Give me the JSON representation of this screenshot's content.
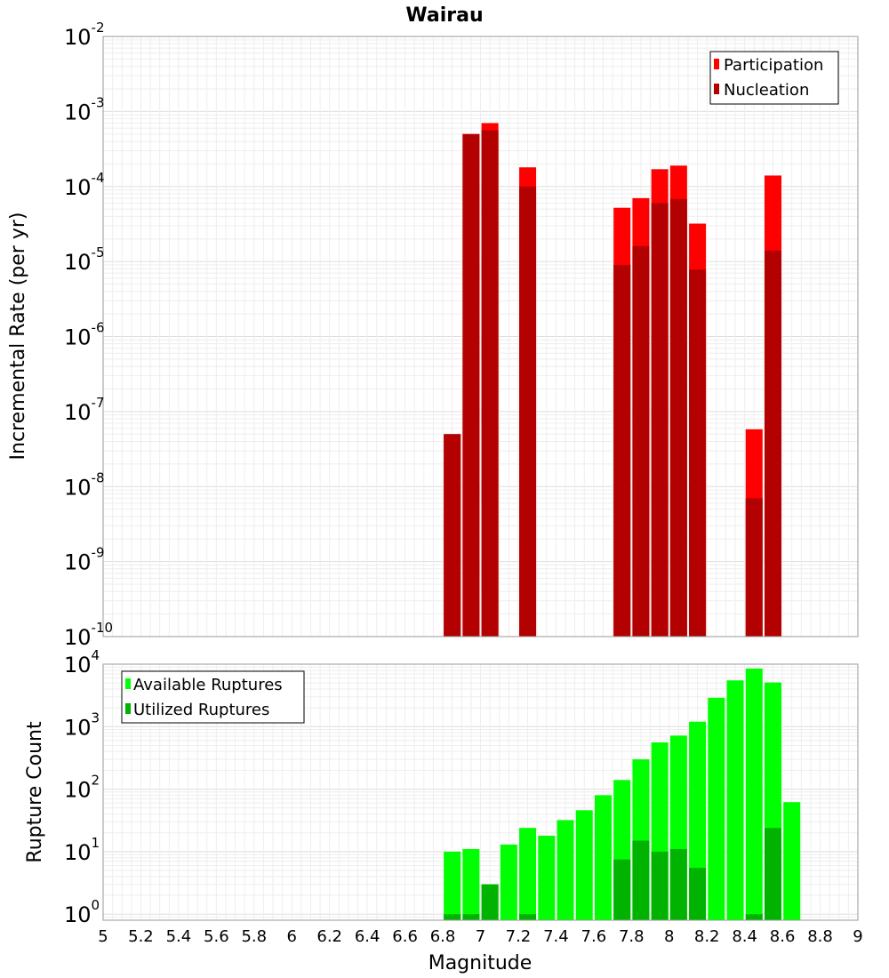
{
  "chart_data": [
    {
      "type": "bar",
      "title": "Wairau",
      "xlabel": "",
      "ylabel": "Incremental Rate (per yr)",
      "yscale": "log",
      "ylim": [
        1e-10,
        0.01
      ],
      "xlim": [
        5,
        9
      ],
      "y_tick_labels": [
        {
          "base": "10",
          "exp": "-2"
        },
        {
          "base": "10",
          "exp": "-3"
        },
        {
          "base": "10",
          "exp": "-4"
        },
        {
          "base": "10",
          "exp": "-5"
        },
        {
          "base": "10",
          "exp": "-6"
        },
        {
          "base": "10",
          "exp": "-7"
        },
        {
          "base": "10",
          "exp": "-8"
        },
        {
          "base": "10",
          "exp": "-9"
        },
        {
          "base": "10",
          "exp": "-10"
        }
      ],
      "grid": true,
      "legend_position": "top-right",
      "colors": {
        "Participation": "#ff0000",
        "Nucleation": "#b30000"
      },
      "series": [
        {
          "name": "Participation",
          "x": [
            6.85,
            6.95,
            7.05,
            7.25,
            7.75,
            7.85,
            7.95,
            8.05,
            8.15,
            8.45,
            8.55
          ],
          "values": [
            5e-08,
            0.0005,
            0.0007,
            0.00018,
            5.2e-05,
            7e-05,
            0.00017,
            0.00019,
            3.2e-05,
            5.8e-08,
            0.00014
          ]
        },
        {
          "name": "Nucleation",
          "x": [
            6.85,
            6.95,
            7.05,
            7.25,
            7.75,
            7.85,
            7.95,
            8.05,
            8.15,
            8.45,
            8.55
          ],
          "values": [
            5e-08,
            0.0005,
            0.00056,
            0.0001,
            9e-06,
            1.6e-05,
            6e-05,
            6.8e-05,
            7.8e-06,
            7e-09,
            1.4e-05
          ]
        }
      ]
    },
    {
      "type": "bar",
      "title": "",
      "xlabel": "Magnitude",
      "ylabel": "Rupture Count",
      "yscale": "log",
      "ylim": [
        0.8,
        10000
      ],
      "xlim": [
        5,
        9
      ],
      "x_tick_labels": [
        "5",
        "5.2",
        "5.4",
        "5.6",
        "5.8",
        "6",
        "6.2",
        "6.4",
        "6.6",
        "6.8",
        "7",
        "7.2",
        "7.4",
        "7.6",
        "7.8",
        "8",
        "8.2",
        "8.4",
        "8.6",
        "8.8",
        "9"
      ],
      "y_tick_labels": [
        {
          "base": "10",
          "exp": "4"
        },
        {
          "base": "10",
          "exp": "3"
        },
        {
          "base": "10",
          "exp": "2"
        },
        {
          "base": "10",
          "exp": "1"
        },
        {
          "base": "10",
          "exp": "0"
        }
      ],
      "grid": true,
      "legend_position": "top-left",
      "colors": {
        "Available Ruptures": "#00ff00",
        "Utilized Ruptures": "#00b300"
      },
      "series": [
        {
          "name": "Available Ruptures",
          "x": [
            6.85,
            6.95,
            7.05,
            7.15,
            7.25,
            7.35,
            7.45,
            7.55,
            7.65,
            7.75,
            7.85,
            7.95,
            8.05,
            8.15,
            8.25,
            8.35,
            8.45,
            8.55,
            8.65
          ],
          "values": [
            10,
            11,
            3,
            13,
            24,
            18,
            32,
            46,
            80,
            140,
            300,
            560,
            720,
            1200,
            2900,
            5500,
            8500,
            5100,
            62
          ]
        },
        {
          "name": "Utilized Ruptures",
          "x": [
            6.85,
            6.95,
            7.05,
            7.25,
            7.75,
            7.85,
            7.95,
            8.05,
            8.15,
            8.45,
            8.55
          ],
          "values": [
            1,
            1,
            3,
            1,
            7.5,
            15,
            10,
            11,
            5.5,
            1,
            24
          ]
        }
      ]
    }
  ]
}
